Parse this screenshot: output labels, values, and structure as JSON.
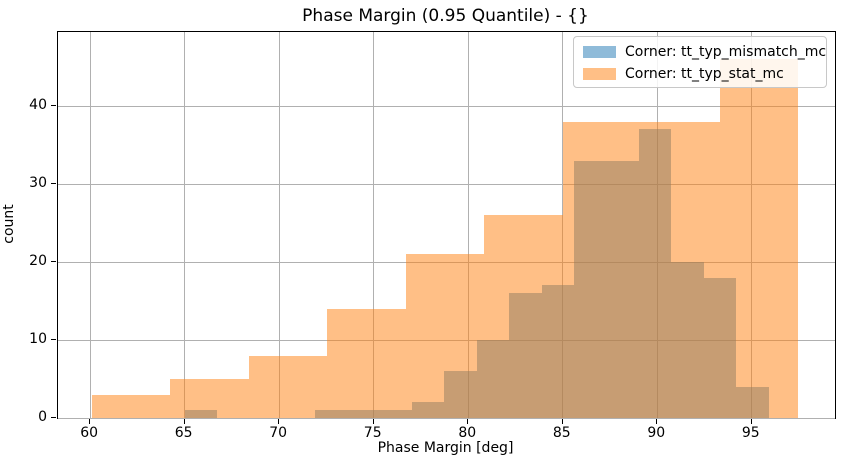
{
  "chart_data": {
    "type": "bar",
    "subtype": "overlapping-histograms",
    "title": "Phase Margin (0.95 Quantile) - {}",
    "xlabel": "Phase Margin [deg]",
    "ylabel": "count",
    "xlim": [
      58.3,
      99.4
    ],
    "ylim": [
      0,
      49.5
    ],
    "x_ticks": [
      60,
      65,
      70,
      75,
      80,
      85,
      90,
      95
    ],
    "y_ticks": [
      0,
      10,
      20,
      30,
      40
    ],
    "grid": true,
    "legend": {
      "position": "upper right",
      "entries": [
        "Corner: tt_typ_mismatch_mc",
        "Corner: tt_typ_stat_mc"
      ]
    },
    "series": [
      {
        "name": "Corner: tt_typ_mismatch_mc",
        "color": "#1f77b4",
        "fill": "rgba(31,119,180,0.5)",
        "swatch_hex": "#8fbbda",
        "bin_edges": [
          65.0,
          66.72,
          68.43,
          70.15,
          71.87,
          73.58,
          75.3,
          77.02,
          78.73,
          80.45,
          82.17,
          83.88,
          85.6,
          87.32,
          89.03,
          90.75,
          92.47,
          94.18,
          95.9
        ],
        "counts": [
          1,
          0,
          0,
          0,
          1,
          1,
          1,
          2,
          6,
          10,
          16,
          17,
          33,
          33,
          37,
          20,
          18,
          4
        ]
      },
      {
        "name": "Corner: tt_typ_stat_mc",
        "color": "#ff7f0e",
        "fill": "rgba(255,127,14,0.5)",
        "swatch_hex": "#ffbf87",
        "bin_edges": [
          60.1,
          64.25,
          68.4,
          72.55,
          76.7,
          80.86,
          85.01,
          89.16,
          93.31,
          97.46
        ],
        "counts": [
          3,
          5,
          8,
          14,
          21,
          26,
          38,
          38,
          46
        ]
      }
    ],
    "colors": {
      "grid": "#b0b0b0",
      "spine": "#000000",
      "text": "#000000",
      "background": "#ffffff",
      "overlap_appearance": "#c79d74"
    }
  }
}
